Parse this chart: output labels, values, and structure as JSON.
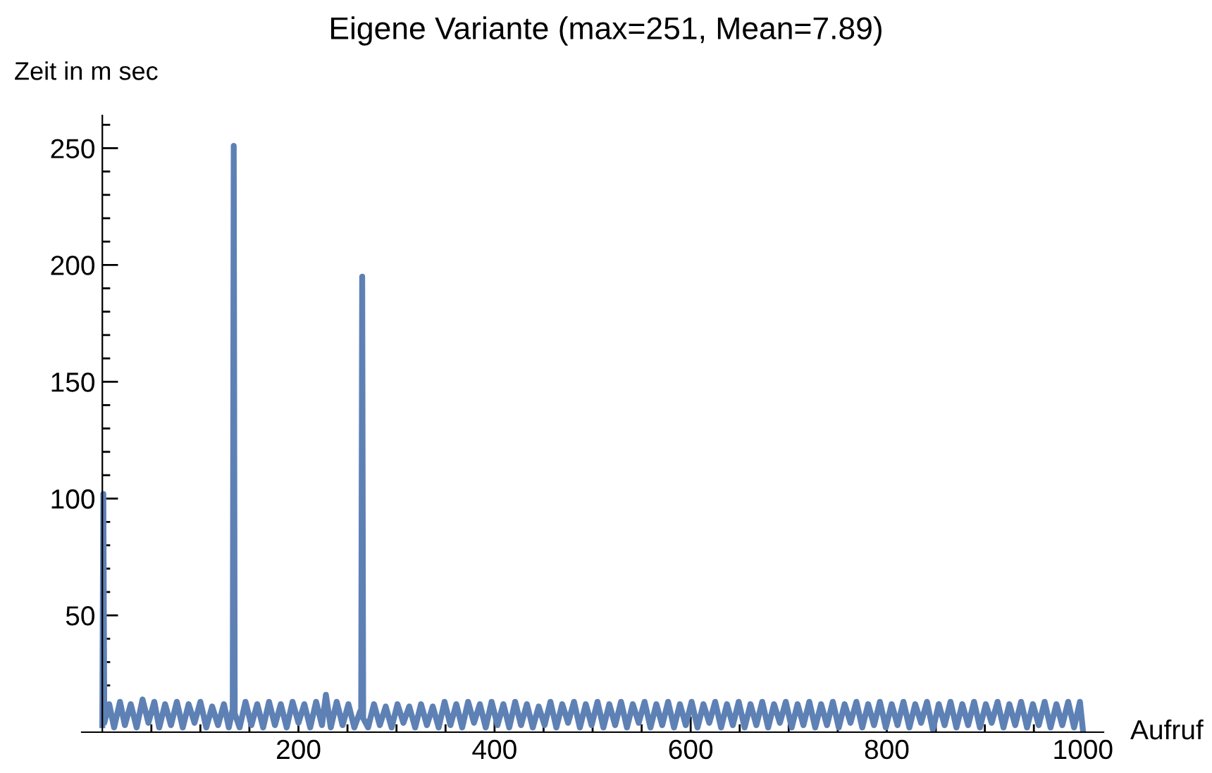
{
  "chart_data": {
    "type": "line",
    "title": "Eigene Variante (max=251, Mean=7.89)",
    "xlabel": "Aufruf",
    "ylabel": "Zeit in m sec",
    "series": [
      {
        "color": "#5e81b5",
        "x": [
          0,
          1,
          2,
          7,
          12,
          18,
          23,
          29,
          35,
          41,
          47,
          53,
          58,
          64,
          70,
          76,
          82,
          88,
          94,
          100,
          106,
          112,
          118,
          124,
          129,
          133,
          134,
          135,
          140,
          146,
          152,
          158,
          164,
          170,
          176,
          182,
          188,
          194,
          200,
          206,
          212,
          218,
          224,
          228,
          233,
          239,
          245,
          251,
          257,
          263,
          264,
          265,
          266,
          271,
          277,
          283,
          289,
          295,
          301,
          307,
          313,
          319,
          325,
          331,
          337,
          343,
          349,
          355,
          361,
          367,
          373,
          379,
          385,
          391,
          397,
          403,
          409,
          415,
          421,
          427,
          433,
          439,
          445,
          451,
          457,
          463,
          469,
          475,
          481,
          487,
          493,
          499,
          505,
          511,
          517,
          523,
          529,
          535,
          541,
          547,
          553,
          559,
          565,
          571,
          577,
          583,
          589,
          595,
          601,
          607,
          613,
          619,
          625,
          631,
          637,
          643,
          649,
          655,
          661,
          667,
          673,
          679,
          685,
          691,
          697,
          703,
          709,
          715,
          721,
          727,
          733,
          739,
          745,
          751,
          757,
          763,
          769,
          775,
          781,
          787,
          793,
          799,
          805,
          811,
          817,
          823,
          829,
          835,
          841,
          847,
          853,
          859,
          865,
          871,
          877,
          883,
          889,
          895,
          901,
          907,
          913,
          919,
          925,
          931,
          937,
          943,
          949,
          955,
          961,
          967,
          973,
          979,
          985,
          991,
          997,
          1000
        ],
        "values": [
          3,
          102,
          4,
          12,
          2,
          13,
          3,
          12,
          2,
          14,
          4,
          13,
          2,
          12,
          3,
          13,
          2,
          12,
          4,
          13,
          2,
          11,
          3,
          12,
          2,
          10,
          251,
          8,
          2,
          13,
          3,
          12,
          2,
          13,
          3,
          12,
          2,
          13,
          4,
          12,
          2,
          13,
          3,
          16,
          2,
          13,
          3,
          12,
          2,
          9,
          9,
          195,
          6,
          2,
          12,
          3,
          11,
          2,
          12,
          4,
          11,
          2,
          12,
          3,
          11,
          2,
          13,
          3,
          12,
          2,
          13,
          4,
          12,
          2,
          13,
          3,
          12,
          2,
          13,
          3,
          12,
          2,
          11,
          3,
          13,
          2,
          12,
          4,
          13,
          2,
          12,
          3,
          13,
          2,
          12,
          3,
          13,
          2,
          12,
          4,
          13,
          2,
          12,
          3,
          13,
          2,
          12,
          3,
          13,
          2,
          12,
          4,
          13,
          2,
          12,
          3,
          13,
          2,
          12,
          3,
          13,
          2,
          12,
          4,
          13,
          2,
          12,
          3,
          13,
          2,
          12,
          3,
          13,
          2,
          12,
          4,
          13,
          2,
          12,
          3,
          13,
          2,
          12,
          3,
          13,
          2,
          12,
          4,
          13,
          1,
          12,
          3,
          13,
          2,
          12,
          3,
          13,
          2,
          12,
          4,
          13,
          2,
          12,
          3,
          13,
          2,
          12,
          3,
          13,
          2,
          12,
          3,
          13,
          2,
          13,
          1
        ]
      }
    ],
    "xlim": [
      -21,
      1021
    ],
    "ylim": [
      0,
      264
    ],
    "xticks": [
      {
        "value": 50,
        "label": null
      },
      {
        "value": 100,
        "label": null
      },
      {
        "value": 150,
        "label": null
      },
      200,
      {
        "value": 250,
        "label": null
      },
      {
        "value": 300,
        "label": null
      },
      {
        "value": 350,
        "label": null
      },
      400,
      {
        "value": 450,
        "label": null
      },
      {
        "value": 500,
        "label": null
      },
      {
        "value": 550,
        "label": null
      },
      600,
      {
        "value": 650,
        "label": null
      },
      {
        "value": 700,
        "label": null
      },
      {
        "value": 750,
        "label": null
      },
      800,
      {
        "value": 850,
        "label": null
      },
      {
        "value": 900,
        "label": null
      },
      {
        "value": 950,
        "label": null
      },
      1000
    ],
    "yticks": [
      {
        "value": 10,
        "label": null
      },
      {
        "value": 20,
        "label": null
      },
      {
        "value": 30,
        "label": null
      },
      {
        "value": 40,
        "label": null
      },
      50,
      {
        "value": 60,
        "label": null
      },
      {
        "value": 70,
        "label": null
      },
      {
        "value": 80,
        "label": null
      },
      {
        "value": 90,
        "label": null
      },
      100,
      {
        "value": 110,
        "label": null
      },
      {
        "value": 120,
        "label": null
      },
      {
        "value": 130,
        "label": null
      },
      {
        "value": 140,
        "label": null
      },
      150,
      {
        "value": 160,
        "label": null
      },
      {
        "value": 170,
        "label": null
      },
      {
        "value": 180,
        "label": null
      },
      {
        "value": 190,
        "label": null
      },
      200,
      {
        "value": 210,
        "label": null
      },
      {
        "value": 220,
        "label": null
      },
      {
        "value": 230,
        "label": null
      },
      {
        "value": 240,
        "label": null
      },
      250,
      {
        "value": 260,
        "label": null
      }
    ],
    "grid": false,
    "marker": "none",
    "line_style": "solid"
  }
}
